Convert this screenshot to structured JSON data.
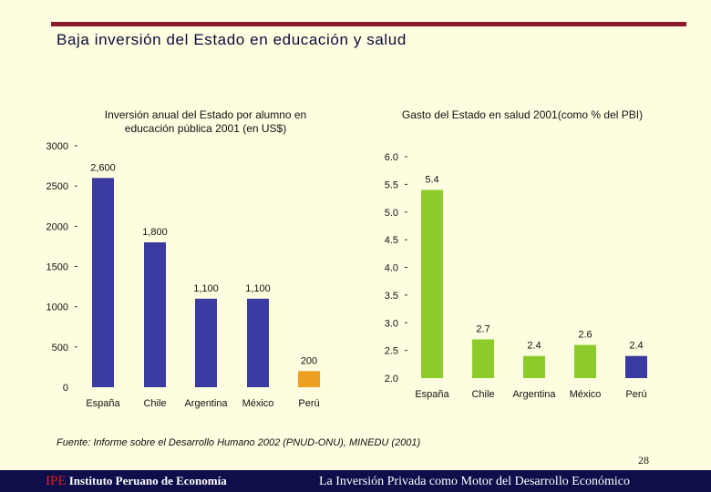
{
  "header": {
    "title": "Baja inversión del Estado en educación y salud"
  },
  "colors": {
    "rule": "#8b1a2a",
    "edu_bar": "#3a3aa0",
    "edu_highlight": "#f0a020",
    "health_bar": "#8ccc2a",
    "health_highlight": "#3a3aa0"
  },
  "chart_data": [
    {
      "type": "bar",
      "title": "Inversión anual del Estado por alumno en educación pública 2001 (en US$)",
      "categories": [
        "España",
        "Chile",
        "Argentina",
        "México",
        "Perú"
      ],
      "values": [
        2600,
        1800,
        1100,
        1100,
        200
      ],
      "value_labels": [
        "2,600",
        "1,800",
        "1,100",
        "1,100",
        "200"
      ],
      "yticks": [
        "0",
        "500",
        "1000",
        "1500",
        "2000",
        "2500",
        "3000"
      ],
      "ylim": [
        0,
        3000
      ],
      "highlight": "Perú",
      "xlabel": "",
      "ylabel": ""
    },
    {
      "type": "bar",
      "title": "Gasto del Estado en salud 2001(como % del PBI)",
      "categories": [
        "España",
        "Chile",
        "Argentina",
        "México",
        "Perú"
      ],
      "values": [
        5.4,
        2.7,
        2.4,
        2.6,
        2.4
      ],
      "value_labels": [
        "5.4",
        "2.7",
        "2.4",
        "2.6",
        "2.4"
      ],
      "yticks": [
        "2.0",
        "2.5",
        "3.0",
        "3.5",
        "4.0",
        "4.5",
        "5.0",
        "5.5",
        "6.0"
      ],
      "ylim": [
        2.0,
        6.0
      ],
      "highlight": "Perú",
      "xlabel": "",
      "ylabel": ""
    }
  ],
  "footnote": "Fuente: Informe sobre el Desarrollo Humano 2002 (PNUD-ONU), MINEDU (2001)",
  "page_number": "28",
  "footer": {
    "brand": "IPE",
    "org_name": "Instituto Peruano de Economía",
    "tagline": "La Inversión Privada como Motor del Desarrollo Económico"
  }
}
